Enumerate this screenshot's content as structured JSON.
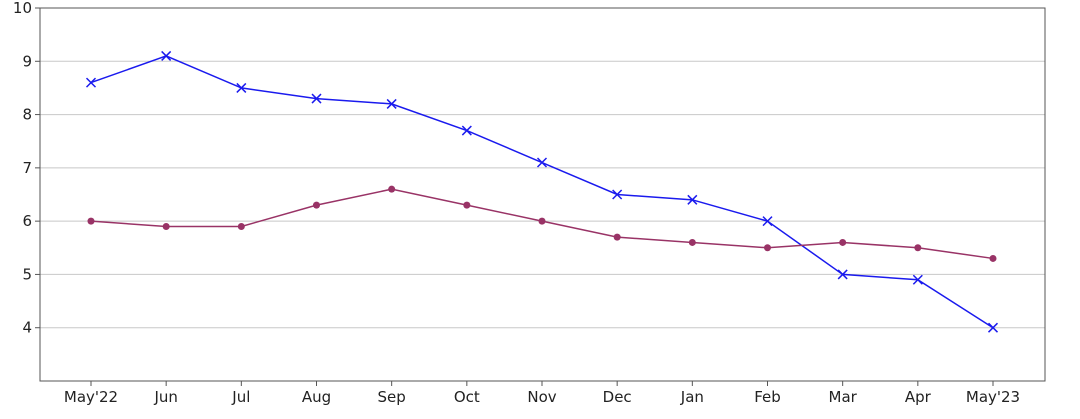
{
  "chart_data": {
    "type": "line",
    "title": "",
    "xlabel": "",
    "ylabel": "",
    "categories": [
      "May'22",
      "Jun",
      "Jul",
      "Aug",
      "Sep",
      "Oct",
      "Nov",
      "Dec",
      "Jan",
      "Feb",
      "Mar",
      "Apr",
      "May'23"
    ],
    "ylim": [
      3,
      10
    ],
    "yticks": [
      4,
      5,
      6,
      7,
      8,
      9,
      10
    ],
    "grid": true,
    "series": [
      {
        "color": "#1a1aee",
        "marker": "x",
        "values": [
          8.6,
          9.1,
          8.5,
          8.3,
          8.2,
          7.7,
          7.1,
          6.5,
          6.4,
          6.0,
          5.0,
          4.9,
          4.0
        ]
      },
      {
        "color": "#993366",
        "marker": "dot",
        "values": [
          6.0,
          5.9,
          5.9,
          6.3,
          6.6,
          6.3,
          6.0,
          5.7,
          5.6,
          5.5,
          5.6,
          5.5,
          5.3
        ]
      }
    ]
  }
}
